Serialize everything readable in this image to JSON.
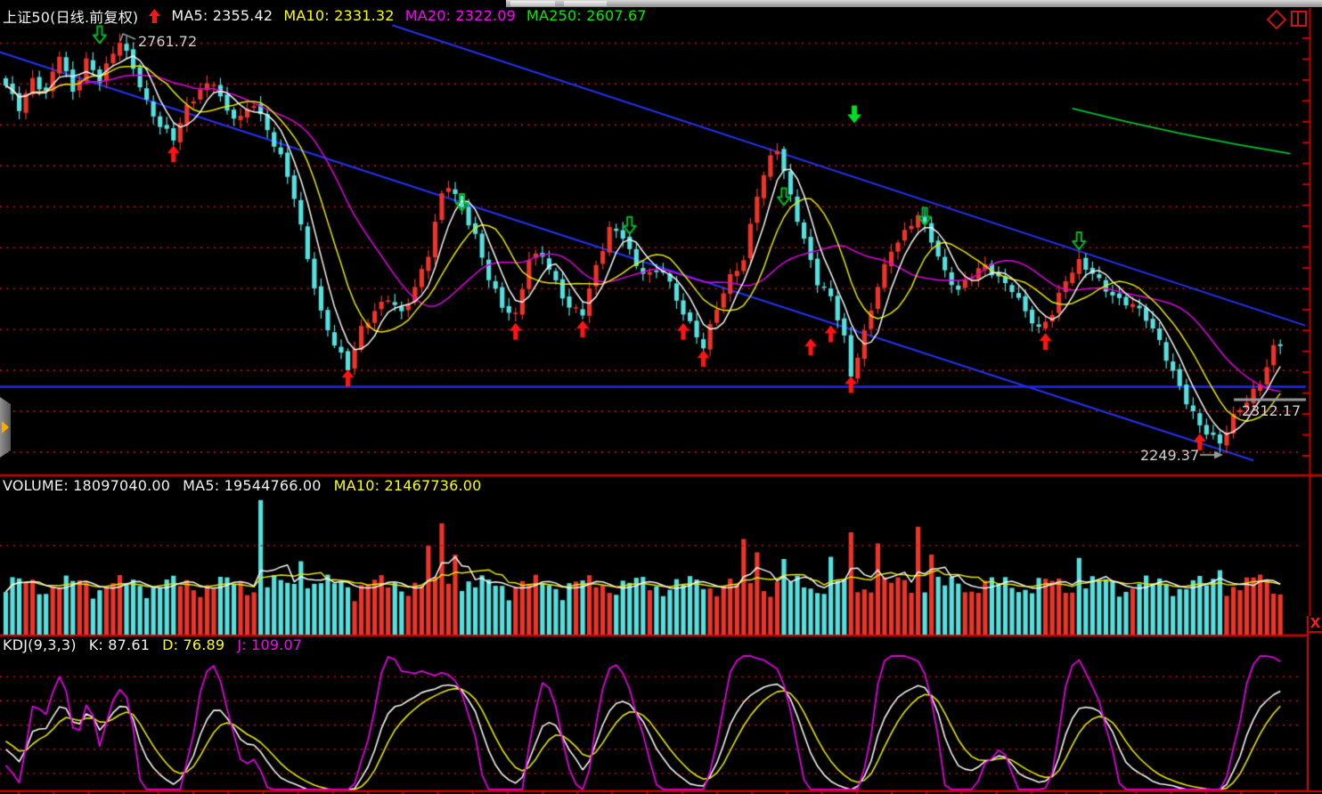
{
  "header": {
    "symbol": "上证50(日线.前复权)",
    "ma5": "MA5: 2355.42",
    "ma10": "MA10: 2331.32",
    "ma20": "MA20: 2322.09",
    "ma250": "MA250: 2607.67"
  },
  "window_icons": {
    "diamond": "diamond-marker",
    "panes": "pane-layout",
    "close": "X"
  },
  "volume_header": {
    "volume": "VOLUME: 18097040.00",
    "ma5": "MA5: 19544766.00",
    "ma10": "MA10: 21467736.00"
  },
  "kdj_header": {
    "title": "KDJ(9,3,3)",
    "k": "K: 87.61",
    "d": "D: 76.89",
    "j": "J: 109.07"
  },
  "annotations": {
    "high": "2761.72",
    "last": "2312.17",
    "low": "2249.37"
  },
  "colors": {
    "background": "#000000",
    "candle_up": "#ee3428",
    "candle_down": "#55e0e0",
    "ma5": "#f5f5f5",
    "ma10": "#e6e600",
    "ma20": "#e000e0",
    "ma250": "#00c030",
    "grid_dots": "#c41010",
    "separator": "#c80000",
    "axis": "#c80000",
    "trendline_blue": "#2233ee",
    "support_blue": "#2228f0",
    "buy_arrow": "#ff1414",
    "sell_arrow": "#00bb22",
    "annotation_text": "#cfcfcf",
    "annotation_line": "#9a9a9a"
  },
  "chart_data": [
    {
      "type": "candlestick",
      "panel": "price",
      "title": "上证50(日线.前复权)",
      "n": 191,
      "ylim": [
        2224,
        2794
      ],
      "grid_values": [
        2250,
        2300,
        2350,
        2400,
        2450,
        2500,
        2550,
        2600,
        2650,
        2700,
        2750
      ],
      "ma_last_values": {
        "ma5": 2355.42,
        "ma10": 2331.32,
        "ma20": 2322.09,
        "ma250": 2607.67
      },
      "close_pivots": [
        [
          0,
          2698
        ],
        [
          2,
          2668
        ],
        [
          4,
          2702
        ],
        [
          6,
          2690
        ],
        [
          8,
          2740
        ],
        [
          10,
          2692
        ],
        [
          12,
          2728
        ],
        [
          14,
          2702
        ],
        [
          17,
          2752
        ],
        [
          19,
          2722
        ],
        [
          21,
          2680
        ],
        [
          23,
          2650
        ],
        [
          25,
          2632
        ],
        [
          27,
          2668
        ],
        [
          29,
          2692
        ],
        [
          31,
          2705
        ],
        [
          33,
          2668
        ],
        [
          35,
          2660
        ],
        [
          37,
          2675
        ],
        [
          39,
          2640
        ],
        [
          41,
          2610
        ],
        [
          43,
          2565
        ],
        [
          45,
          2490
        ],
        [
          47,
          2420
        ],
        [
          49,
          2380
        ],
        [
          51,
          2350
        ],
        [
          53,
          2400
        ],
        [
          55,
          2425
        ],
        [
          57,
          2442
        ],
        [
          59,
          2420
        ],
        [
          61,
          2448
        ],
        [
          63,
          2490
        ],
        [
          65,
          2565
        ],
        [
          66,
          2578
        ],
        [
          68,
          2552
        ],
        [
          70,
          2515
        ],
        [
          72,
          2462
        ],
        [
          74,
          2425
        ],
        [
          76,
          2415
        ],
        [
          78,
          2488
        ],
        [
          80,
          2495
        ],
        [
          82,
          2458
        ],
        [
          84,
          2425
        ],
        [
          86,
          2418
        ],
        [
          88,
          2475
        ],
        [
          90,
          2525
        ],
        [
          92,
          2518
        ],
        [
          94,
          2478
        ],
        [
          96,
          2465
        ],
        [
          98,
          2470
        ],
        [
          100,
          2435
        ],
        [
          102,
          2408
        ],
        [
          104,
          2382
        ],
        [
          106,
          2428
        ],
        [
          108,
          2462
        ],
        [
          110,
          2482
        ],
        [
          112,
          2565
        ],
        [
          114,
          2612
        ],
        [
          115,
          2625
        ],
        [
          117,
          2565
        ],
        [
          119,
          2508
        ],
        [
          121,
          2455
        ],
        [
          123,
          2438
        ],
        [
          125,
          2390
        ],
        [
          126,
          2345
        ],
        [
          128,
          2398
        ],
        [
          130,
          2455
        ],
        [
          132,
          2495
        ],
        [
          134,
          2515
        ],
        [
          136,
          2540
        ],
        [
          138,
          2512
        ],
        [
          140,
          2472
        ],
        [
          142,
          2448
        ],
        [
          144,
          2465
        ],
        [
          146,
          2475
        ],
        [
          148,
          2462
        ],
        [
          150,
          2452
        ],
        [
          152,
          2425
        ],
        [
          154,
          2400
        ],
        [
          156,
          2418
        ],
        [
          158,
          2458
        ],
        [
          160,
          2482
        ],
        [
          162,
          2472
        ],
        [
          164,
          2452
        ],
        [
          166,
          2435
        ],
        [
          168,
          2428
        ],
        [
          170,
          2412
        ],
        [
          172,
          2385
        ],
        [
          174,
          2350
        ],
        [
          176,
          2315
        ],
        [
          178,
          2282
        ],
        [
          180,
          2265
        ],
        [
          181,
          2258
        ],
        [
          183,
          2292
        ],
        [
          185,
          2315
        ],
        [
          187,
          2338
        ],
        [
          189,
          2378
        ],
        [
          190,
          2382
        ]
      ],
      "force_high": [
        [
          17,
          2761.72
        ]
      ],
      "force_low": [
        [
          181,
          2249.37
        ]
      ],
      "signals": {
        "buy_up_arrows": [
          [
            25,
            2625
          ],
          [
            51,
            2351
          ],
          [
            76,
            2408
          ],
          [
            86,
            2411
          ],
          [
            101,
            2408
          ],
          [
            104,
            2375
          ],
          [
            120,
            2389
          ],
          [
            123,
            2405
          ],
          [
            126,
            2343
          ],
          [
            155,
            2396
          ],
          [
            178,
            2273
          ]
        ],
        "sell_down_arrows": [
          [
            14,
            2750
          ],
          [
            68,
            2545
          ],
          [
            93,
            2517
          ],
          [
            116,
            2552
          ],
          [
            137,
            2528
          ],
          [
            160,
            2498
          ]
        ],
        "solid_down_arrow": {
          "index": 126.5,
          "value": 2652
        }
      },
      "price_annotations": [
        {
          "text": "2761.72",
          "index": 17,
          "value": 2761.72
        },
        {
          "text": "2312.17",
          "value": 2312.17
        },
        {
          "text": "2249.37",
          "index": 181,
          "value": 2249.37
        }
      ],
      "overlays": {
        "trend_channel_upper": {
          "from": {
            "index": 57.6,
            "value": 2772
          },
          "to": {
            "index": 193.7,
            "value": 2405
          }
        },
        "trend_channel_lower": {
          "from": {
            "index": -0.9,
            "value": 2739
          },
          "to": {
            "index": 186,
            "value": 2240
          }
        },
        "support_hline": {
          "value": 2330,
          "from_index": -0.9,
          "to_index": 193.8
        },
        "ma250_segment": {
          "from": {
            "index": 159,
            "value": 2670
          },
          "to": {
            "index": 191.5,
            "value": 2615
          }
        }
      }
    },
    {
      "type": "bar",
      "panel": "volume",
      "last_values": {
        "volume": 18097040,
        "ma5": 19544766,
        "ma10": 21467736
      },
      "ylim_millions": [
        0,
        61
      ],
      "grid_values_millions": [
        40
      ],
      "base_millions": {
        "level": 14,
        "amp1": 8,
        "freq1": 0.41,
        "phase1": 0.7,
        "amp2": 5,
        "freq2": 1.93
      },
      "spikes_millions": [
        [
          38,
          60.5,
          "down"
        ],
        [
          44,
          33,
          "down"
        ],
        [
          63,
          40,
          "up"
        ],
        [
          65,
          50,
          "up"
        ],
        [
          67,
          36,
          "up"
        ],
        [
          110,
          43,
          "up"
        ],
        [
          112,
          37,
          "up"
        ],
        [
          116,
          34,
          "down"
        ],
        [
          123,
          35,
          "down"
        ],
        [
          126,
          46,
          "up"
        ],
        [
          130,
          41,
          "up"
        ],
        [
          136,
          48.5,
          "up"
        ],
        [
          138,
          36,
          "up"
        ],
        [
          160,
          34.5,
          "down"
        ],
        [
          181,
          29,
          "down"
        ],
        [
          187,
          27,
          "up"
        ],
        [
          190,
          18.1,
          "up"
        ]
      ]
    },
    {
      "type": "line",
      "panel": "kdj",
      "params": [
        9,
        3,
        3
      ],
      "last_values": {
        "k": 87.61,
        "d": 76.89,
        "j": 109.07
      },
      "grid_values": [
        20,
        40,
        60,
        80,
        100
      ],
      "series_colors": {
        "k": "#f5f5f5",
        "d": "#e6e600",
        "j": "#e000e0"
      }
    }
  ]
}
